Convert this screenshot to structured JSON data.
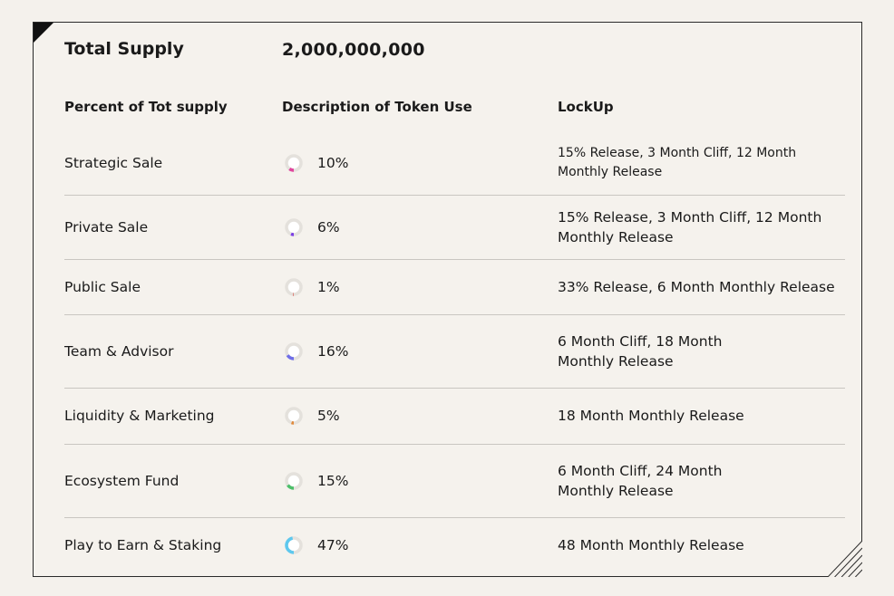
{
  "supply": {
    "label": "Total Supply",
    "value": "2,000,000,000"
  },
  "headers": {
    "percent": "Percent of Tot supply",
    "description": "Description of Token Use",
    "lockup": "LockUp"
  },
  "rows": [
    {
      "name": "Strategic Sale",
      "percent": "10%",
      "fraction": 0.1,
      "color": "#e0479e",
      "lock_line1": "15% Release, 3 Month Cliff, 12 Month",
      "lock_line2": "Monthly Release"
    },
    {
      "name": "Private Sale",
      "percent": "6%",
      "fraction": 0.06,
      "color": "#7b3fe4",
      "lock_line1": "15% Release, 3 Month Cliff, 12 Month",
      "lock_line2": "Monthly Release"
    },
    {
      "name": "Public Sale",
      "percent": "1%",
      "fraction": 0.01,
      "color": "#d9463c",
      "lock_line1": "33% Release, 6 Month Monthly Release",
      "lock_line2": ""
    },
    {
      "name": "Team & Advisor",
      "percent": "16%",
      "fraction": 0.16,
      "color": "#6f6ee8",
      "lock_line1": "6 Month Cliff, 18 Month",
      "lock_line2": "Monthly Release"
    },
    {
      "name": "Liquidity & Marketing",
      "percent": "5%",
      "fraction": 0.05,
      "color": "#e08a3c",
      "lock_line1": "18 Month Monthly Release",
      "lock_line2": ""
    },
    {
      "name": "Ecosystem Fund",
      "percent": "15%",
      "fraction": 0.15,
      "color": "#4cbf6a",
      "lock_line1": "6 Month Cliff, 24 Month",
      "lock_line2": "Monthly Release"
    },
    {
      "name": "Play to Earn & Staking",
      "percent": "47%",
      "fraction": 0.47,
      "color": "#5ec8ee",
      "lock_line1": "48 Month Monthly Release",
      "lock_line2": ""
    }
  ]
}
